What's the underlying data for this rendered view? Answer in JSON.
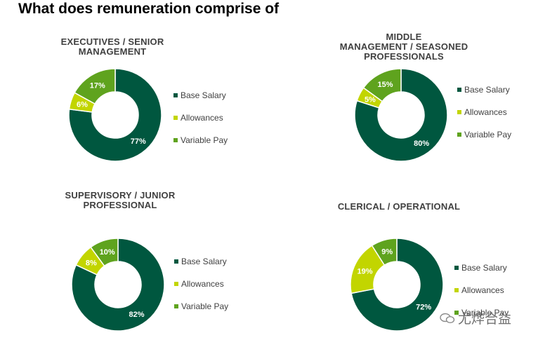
{
  "title": "What does remuneration comprise of",
  "colors": {
    "base": "#00573F",
    "allowances": "#C2D500",
    "variable": "#5FA31E",
    "text": "#404040"
  },
  "watermark": "尤烨合益",
  "chart_data": [
    {
      "type": "pie",
      "variant": "donut",
      "title_lines": [
        "EXECUTIVES / SENIOR",
        "MANAGEMENT"
      ],
      "categories": [
        "Base Salary",
        "Allowances",
        "Variable Pay"
      ],
      "values": [
        77,
        6,
        17
      ],
      "labels": [
        "77%",
        "6%",
        "17%"
      ],
      "legend": "right"
    },
    {
      "type": "pie",
      "variant": "donut",
      "title_lines": [
        "MIDDLE",
        "MANAGEMENT / SEASONED",
        "PROFESSIONALS"
      ],
      "categories": [
        "Base Salary",
        "Allowances",
        "Variable Pay"
      ],
      "values": [
        80,
        5,
        15
      ],
      "labels": [
        "80%",
        "5%",
        "15%"
      ],
      "legend": "right"
    },
    {
      "type": "pie",
      "variant": "donut",
      "title_lines": [
        "SUPERVISORY / JUNIOR",
        "PROFESSIONAL"
      ],
      "categories": [
        "Base Salary",
        "Allowances",
        "Variable Pay"
      ],
      "values": [
        82,
        8,
        10
      ],
      "labels": [
        "82%",
        "8%",
        "10%"
      ],
      "legend": "right"
    },
    {
      "type": "pie",
      "variant": "donut",
      "title_lines": [
        "CLERICAL / OPERATIONAL"
      ],
      "categories": [
        "Base Salary",
        "Allowances",
        "Variable Pay"
      ],
      "values": [
        72,
        19,
        9
      ],
      "labels": [
        "72%",
        "19%",
        "9%"
      ],
      "legend": "right"
    }
  ]
}
